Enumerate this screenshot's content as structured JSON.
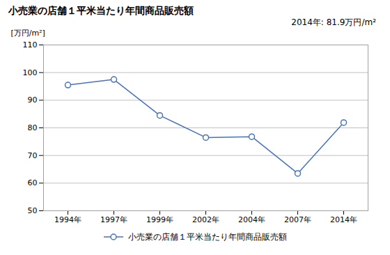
{
  "chart_data": {
    "type": "line",
    "title": "小売業の店舗１平米当たり年間商品販売額",
    "ylabel": "[万円/m²]",
    "annotation": "2014年: 81.9万円/m²",
    "categories": [
      "1994年",
      "1997年",
      "1999年",
      "2002年",
      "2004年",
      "2007年",
      "2014年"
    ],
    "series": [
      {
        "name": "小売業の店舗１平米当たり年間商品販売額",
        "color": "#4472C4",
        "marker": "circle",
        "values": [
          95.5,
          97.5,
          84.5,
          76.5,
          76.8,
          63.5,
          81.9
        ]
      }
    ],
    "ylim": [
      50,
      110
    ],
    "yticks": [
      50,
      60,
      70,
      80,
      90,
      100,
      110
    ],
    "grid": true,
    "legend": "bottom"
  }
}
